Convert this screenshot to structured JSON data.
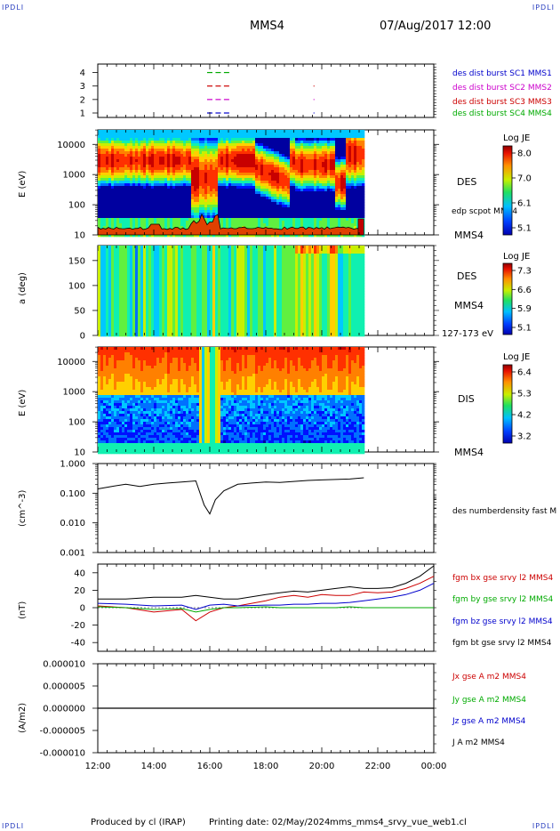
{
  "header": {
    "corner_left": "IPDLI",
    "corner_right": "IPDLI",
    "corner_bl": "IPDLI",
    "corner_br": "IPDLI",
    "spacecraft": "MMS4",
    "datetime": "07/Aug/2017 12:00"
  },
  "footer": {
    "produced": "Produced by cl (IRAP)",
    "printing": "Printing date: 02/May/2024",
    "script": "mms_mms4_srvy_vue_web1.cl"
  },
  "time_axis": {
    "ticks": [
      "12:00",
      "14:00",
      "16:00",
      "18:00",
      "20:00",
      "22:00",
      "00:00"
    ],
    "range_hours": [
      12,
      24
    ]
  },
  "panels": {
    "avail": {
      "yticks": [
        "4",
        "3",
        "2",
        "1"
      ],
      "legend": [
        {
          "text": "des dist burst SC1 MMS1",
          "color": "#0000cc"
        },
        {
          "text": "des dist burst SC2 MMS2",
          "color": "#cc00cc"
        },
        {
          "text": "des dist burst SC3 MMS3",
          "color": "#cc0000"
        },
        {
          "text": "des dist burst SC4 MMS4",
          "color": "#00aa00"
        }
      ]
    },
    "des_e": {
      "ylabel": "E (eV)",
      "yticks": [
        "10000",
        "1000",
        "100",
        "10"
      ],
      "label": "DES",
      "overlay_label": "edp scpot MMS4",
      "sc_label": "MMS4",
      "cbar_title": "Log JE",
      "cbar_ticks": [
        "8.0",
        "7.0",
        "6.1",
        "5.1"
      ]
    },
    "des_pa": {
      "ylabel": "a (deg)",
      "yticks": [
        "150",
        "100",
        "50",
        "0"
      ],
      "label": "DES",
      "sc_label": "MMS4",
      "energy_label": "127-173 eV",
      "cbar_title": "Log JE",
      "cbar_ticks": [
        "7.3",
        "6.6",
        "5.9",
        "5.1"
      ]
    },
    "dis_e": {
      "ylabel": "E (eV)",
      "yticks": [
        "10000",
        "1000",
        "100",
        "10"
      ],
      "label": "DIS",
      "sc_label": "MMS4",
      "cbar_title": "Log JE",
      "cbar_ticks": [
        "6.4",
        "5.3",
        "4.2",
        "3.2"
      ]
    },
    "density": {
      "ylabel": "(cm^-3)",
      "yticks": [
        "1.000",
        "0.100",
        "0.010",
        "0.001"
      ],
      "legend": "des numberdensity fast M"
    },
    "bfield": {
      "ylabel": "(nT)",
      "yticks": [
        "40",
        "20",
        "0",
        "-20",
        "-40"
      ],
      "legend": [
        {
          "text": "fgm bx gse srvy l2 MMS4",
          "color": "#cc0000"
        },
        {
          "text": "fgm by gse srvy l2 MMS4",
          "color": "#00aa00"
        },
        {
          "text": "fgm bz gse srvy l2 MMS4",
          "color": "#0000cc"
        },
        {
          "text": "fgm bt gse srvy l2 MMS4",
          "color": "#000000"
        }
      ]
    },
    "current": {
      "ylabel": "(A/m2)",
      "yticks": [
        "0.000010",
        "0.000005",
        "0.000000",
        "-0.000005",
        "-0.000010"
      ],
      "legend": [
        {
          "text": "Jx gse A m2 MMS4",
          "color": "#cc0000"
        },
        {
          "text": "Jy gse A m2 MMS4",
          "color": "#00aa00"
        },
        {
          "text": "Jz gse A m2 MMS4",
          "color": "#0000cc"
        },
        {
          "text": "J A m2 MMS4",
          "color": "#000000"
        }
      ]
    }
  },
  "chart_data": [
    {
      "type": "scatter",
      "id": "burst_availability",
      "y_categories": [
        1,
        2,
        3,
        4
      ],
      "series": [
        {
          "name": "des dist burst SC1 MMS1",
          "y": 1,
          "x_hours": [
            16.0,
            16.3,
            16.6,
            19.8
          ]
        },
        {
          "name": "des dist burst SC2 MMS2",
          "y": 2,
          "x_hours": [
            16.0,
            16.3,
            16.6,
            19.8
          ]
        },
        {
          "name": "des dist burst SC3 MMS3",
          "y": 3,
          "x_hours": [
            16.0,
            16.3,
            16.6,
            19.8
          ]
        },
        {
          "name": "des dist burst SC4 MMS4",
          "y": 4,
          "x_hours": [
            16.0,
            16.3,
            16.6
          ]
        }
      ]
    },
    {
      "type": "heatmap",
      "id": "des_energy_spectrogram",
      "y_scale": "log",
      "ylim": [
        10,
        30000
      ],
      "colorbar_range": [
        5.1,
        8.0
      ],
      "data_end_hour": 21.5
    },
    {
      "type": "heatmap",
      "id": "des_pitch_angle",
      "ylim": [
        0,
        180
      ],
      "colorbar_range": [
        5.1,
        7.3
      ],
      "data_end_hour": 21.5
    },
    {
      "type": "heatmap",
      "id": "dis_energy_spectrogram",
      "y_scale": "log",
      "ylim": [
        10,
        30000
      ],
      "colorbar_range": [
        3.2,
        6.4
      ],
      "data_end_hour": 21.5
    },
    {
      "type": "line",
      "id": "density",
      "y_scale": "log",
      "ylim": [
        0.001,
        1.0
      ],
      "series": [
        {
          "name": "des numberdensity fast M",
          "x_hours": [
            12.0,
            12.5,
            13.0,
            13.5,
            14.0,
            14.5,
            15.0,
            15.5,
            15.8,
            16.0,
            16.2,
            16.5,
            17.0,
            17.5,
            18.0,
            18.5,
            19.0,
            19.5,
            20.0,
            20.5,
            21.0,
            21.5
          ],
          "y": [
            0.14,
            0.17,
            0.2,
            0.17,
            0.2,
            0.22,
            0.24,
            0.26,
            0.04,
            0.02,
            0.06,
            0.12,
            0.2,
            0.22,
            0.24,
            0.23,
            0.25,
            0.27,
            0.28,
            0.29,
            0.3,
            0.33
          ]
        }
      ]
    },
    {
      "type": "line",
      "id": "magnetic_field",
      "ylim": [
        -50,
        50
      ],
      "x_hours": [
        12.0,
        13.0,
        14.0,
        15.0,
        15.5,
        16.0,
        16.5,
        17.0,
        18.0,
        18.5,
        19.0,
        19.5,
        20.0,
        20.5,
        21.0,
        21.5,
        22.0,
        22.5,
        23.0,
        23.5,
        24.0
      ],
      "series": [
        {
          "name": "fgm bx gse srvy l2 MMS4",
          "y": [
            2,
            0,
            -5,
            -2,
            -15,
            -5,
            0,
            2,
            8,
            12,
            14,
            12,
            15,
            14,
            14,
            18,
            17,
            18,
            22,
            28,
            36
          ]
        },
        {
          "name": "fgm by gse srvy l2 MMS4",
          "y": [
            1,
            0,
            -2,
            -1,
            -5,
            -2,
            0,
            0,
            1,
            0,
            0,
            0,
            0,
            0,
            1,
            0,
            0,
            0,
            0,
            0,
            0
          ]
        },
        {
          "name": "fgm bz gse srvy l2 MMS4",
          "y": [
            5,
            4,
            2,
            3,
            -2,
            3,
            4,
            2,
            3,
            3,
            4,
            4,
            5,
            5,
            6,
            8,
            10,
            12,
            15,
            20,
            28
          ]
        },
        {
          "name": "fgm bt gse srvy l2 MMS4",
          "y": [
            10,
            10,
            12,
            12,
            14,
            12,
            10,
            10,
            15,
            17,
            19,
            18,
            20,
            22,
            24,
            22,
            22,
            23,
            28,
            36,
            48
          ]
        }
      ]
    },
    {
      "type": "line",
      "id": "current_density",
      "ylim": [
        -1e-05,
        1e-05
      ],
      "series": [
        {
          "name": "J A m2 MMS4",
          "x_hours": [
            12,
            24
          ],
          "y": [
            0.0,
            0.0
          ]
        }
      ]
    }
  ]
}
